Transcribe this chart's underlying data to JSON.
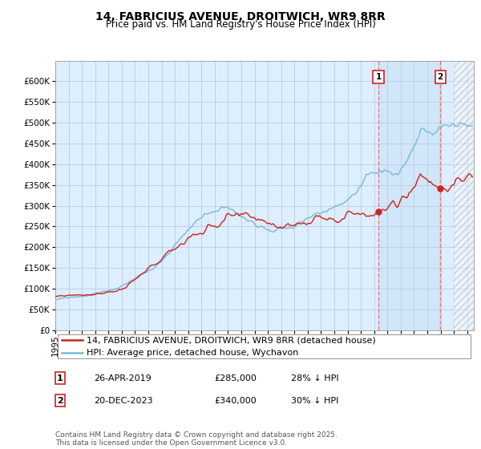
{
  "title": "14, FABRICIUS AVENUE, DROITWICH, WR9 8RR",
  "subtitle": "Price paid vs. HM Land Registry's House Price Index (HPI)",
  "ylim": [
    0,
    650000
  ],
  "yticks": [
    0,
    50000,
    100000,
    150000,
    200000,
    250000,
    300000,
    350000,
    400000,
    450000,
    500000,
    550000,
    600000
  ],
  "xlim_start": 1995.0,
  "xlim_end": 2026.5,
  "hpi_color": "#7ab8d9",
  "price_color": "#cc2222",
  "vline_color": "#e88080",
  "background_color": "#ddeeff",
  "grid_color": "#bbccdd",
  "marker1_date": 2019.32,
  "marker2_date": 2023.97,
  "hatch_start": 2025.0,
  "shade_color": "#ccddf0",
  "legend_line1": "14, FABRICIUS AVENUE, DROITWICH, WR9 8RR (detached house)",
  "legend_line2": "HPI: Average price, detached house, Wychavon",
  "table_row1": [
    "1",
    "26-APR-2019",
    "£285,000",
    "28% ↓ HPI"
  ],
  "table_row2": [
    "2",
    "20-DEC-2023",
    "£340,000",
    "30% ↓ HPI"
  ],
  "footer": "Contains HM Land Registry data © Crown copyright and database right 2025.\nThis data is licensed under the Open Government Licence v3.0.",
  "title_fontsize": 10,
  "subtitle_fontsize": 8.5,
  "tick_fontsize": 7.5,
  "legend_fontsize": 8,
  "table_fontsize": 8,
  "footer_fontsize": 6.5
}
